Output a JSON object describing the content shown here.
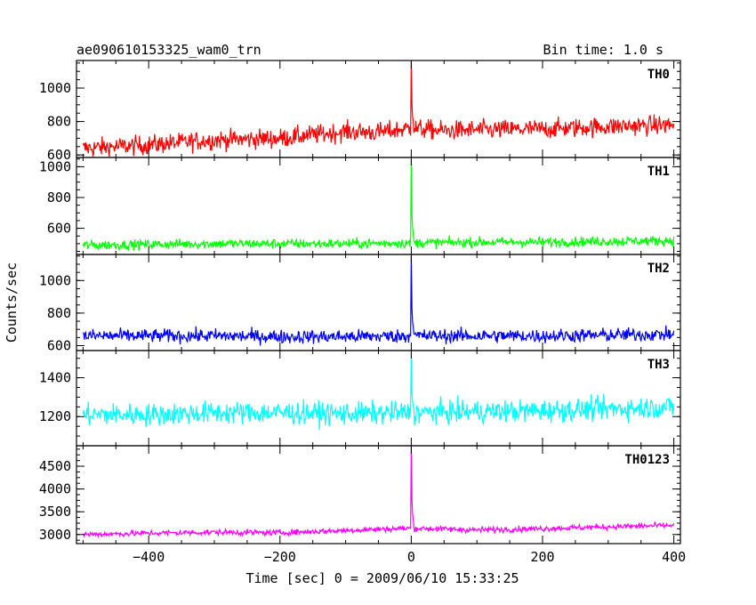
{
  "header": {
    "title": "ae090610153325_wam0_trn",
    "bin_time": "Bin time: 1.0 s"
  },
  "chart_data": {
    "type": "line",
    "xlabel": "Time [sec] 0 = 2009/06/10 15:33:25",
    "ylabel": "Counts/sec",
    "xlim": [
      -510,
      410
    ],
    "x_ticks": [
      -400,
      -200,
      0,
      200,
      400
    ],
    "x_tick_labels": [
      "−400",
      "−200",
      "0",
      "200",
      "400"
    ],
    "panels": [
      {
        "name": "TH0",
        "color": "#ff0000",
        "ylim": [
          585,
          1165
        ],
        "y_ticks": [
          600,
          800,
          1000
        ],
        "y_tick_labels": [
          "600",
          "800",
          "1000"
        ],
        "x": [
          -500,
          -400,
          -300,
          -200,
          -100,
          -50,
          0,
          50,
          100,
          200,
          300,
          400
        ],
        "y": [
          640,
          660,
          690,
          700,
          740,
          735,
          760,
          745,
          750,
          755,
          770,
          780
        ],
        "noise": 55,
        "peak": {
          "x": 0,
          "y": 1160
        }
      },
      {
        "name": "TH1",
        "color": "#00ff00",
        "ylim": [
          430,
          1060
        ],
        "y_ticks": [
          600,
          800,
          1000
        ],
        "y_tick_labels": [
          "600",
          "800",
          "1000"
        ],
        "x": [
          -500,
          -400,
          -300,
          -200,
          -100,
          0,
          100,
          200,
          300,
          400
        ],
        "y": [
          490,
          495,
          500,
          500,
          500,
          505,
          510,
          510,
          515,
          520
        ],
        "noise": 30,
        "peak": {
          "x": 0,
          "y": 1050
        }
      },
      {
        "name": "TH2",
        "color": "#0000ff",
        "ylim": [
          570,
          1160
        ],
        "y_ticks": [
          600,
          800,
          1000
        ],
        "y_tick_labels": [
          "600",
          "800",
          "1000"
        ],
        "x": [
          -500,
          -400,
          -300,
          -200,
          -100,
          0,
          100,
          200,
          300,
          400
        ],
        "y": [
          660,
          660,
          660,
          655,
          655,
          660,
          660,
          660,
          665,
          670
        ],
        "noise": 40,
        "peak": {
          "x": 0,
          "y": 1150
        }
      },
      {
        "name": "TH3",
        "color": "#00ffff",
        "ylim": [
          1050,
          1540
        ],
        "y_ticks": [
          1200,
          1400
        ],
        "y_tick_labels": [
          "1200",
          "1400"
        ],
        "x": [
          -500,
          -400,
          -300,
          -200,
          -100,
          0,
          100,
          200,
          300,
          400
        ],
        "y": [
          1210,
          1210,
          1220,
          1220,
          1215,
          1220,
          1225,
          1230,
          1240,
          1250
        ],
        "noise": 55,
        "peak": {
          "x": 0,
          "y": 1530
        }
      },
      {
        "name": "TH0123",
        "color": "#ff00ff",
        "ylim": [
          2800,
          4950
        ],
        "y_ticks": [
          3000,
          3500,
          4000,
          4500
        ],
        "y_tick_labels": [
          "3000",
          "3500",
          "4000",
          "4500"
        ],
        "x": [
          -500,
          -400,
          -300,
          -200,
          -100,
          0,
          100,
          200,
          300,
          400
        ],
        "y": [
          3000,
          3030,
          3050,
          3040,
          3090,
          3140,
          3100,
          3130,
          3170,
          3200
        ],
        "noise": 60,
        "peak": {
          "x": 0,
          "y": 4930
        }
      }
    ]
  }
}
